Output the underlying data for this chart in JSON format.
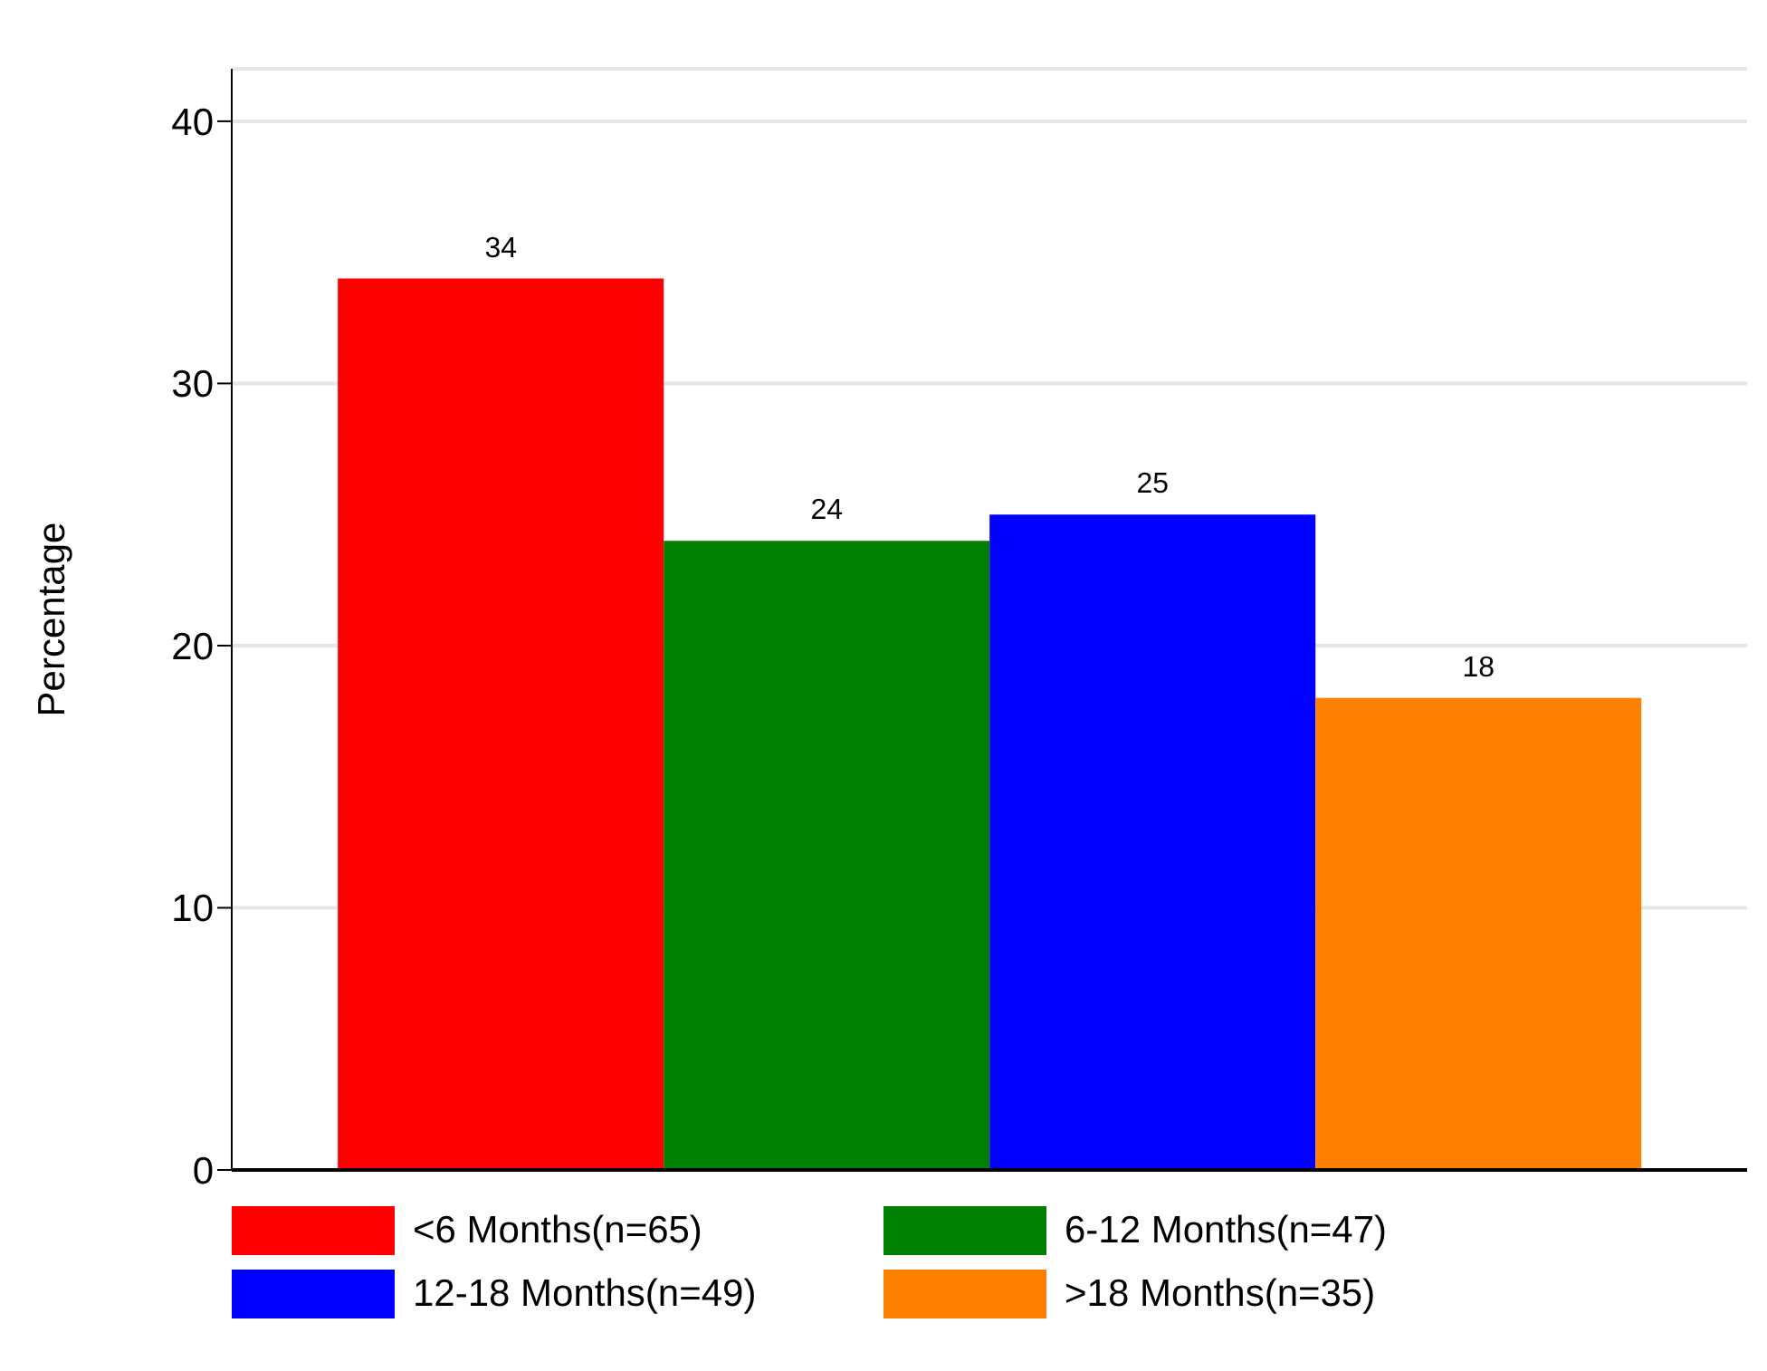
{
  "chart_data": {
    "type": "bar",
    "ylabel": "Percentage",
    "categories": [
      null
    ],
    "series": [
      {
        "name": "<6 Months(n=65)",
        "color": "#ff0000",
        "values": [
          34
        ]
      },
      {
        "name": "6-12 Months(n=47)",
        "color": "#008000",
        "values": [
          24
        ]
      },
      {
        "name": "12-18 Months(n=49)",
        "color": "#0000ff",
        "values": [
          25
        ]
      },
      {
        "name": ">18 Months(n=35)",
        "color": "#ff8000",
        "values": [
          18
        ]
      }
    ],
    "ylim": [
      0,
      42
    ],
    "yticks": [
      0,
      10,
      20,
      30,
      40
    ],
    "grid": "y",
    "legend": "bottom",
    "data_labels": true
  }
}
